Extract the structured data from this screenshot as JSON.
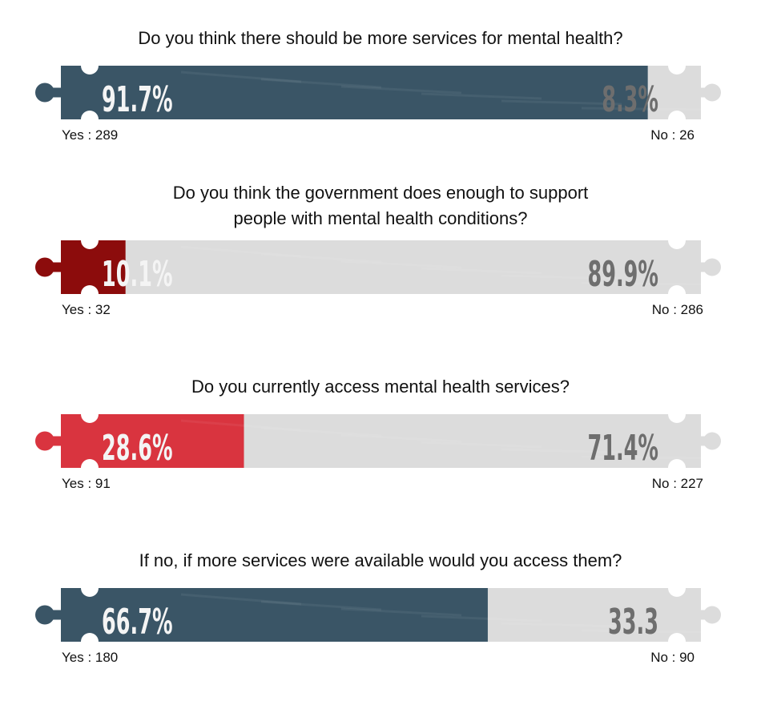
{
  "chart_data": [
    {
      "type": "bar",
      "orientation": "horizontal-stacked",
      "title": "Do you think there should be more services for mental health?",
      "title_lines": [
        "Do you think there should be more services for mental health?"
      ],
      "categories": [
        "Yes",
        "No"
      ],
      "values_percent": [
        91.7,
        8.3
      ],
      "percent_labels": [
        "91.7%",
        "8.3%"
      ],
      "counts": [
        289,
        26
      ],
      "count_labels": [
        "Yes : 289",
        "No : 26"
      ],
      "colors": {
        "yes": "#3a5566",
        "no": "#dcdcdc"
      }
    },
    {
      "type": "bar",
      "orientation": "horizontal-stacked",
      "title": "Do you think the government does enough to support people with mental health conditions?",
      "title_lines": [
        "Do you think the government does enough to support",
        "people with mental health conditions?"
      ],
      "categories": [
        "Yes",
        "No"
      ],
      "values_percent": [
        10.1,
        89.9
      ],
      "percent_labels": [
        "10.1%",
        "89.9%"
      ],
      "counts": [
        32,
        286
      ],
      "count_labels": [
        "Yes : 32",
        "No : 286"
      ],
      "colors": {
        "yes": "#8c0c0c",
        "no": "#dcdcdc"
      }
    },
    {
      "type": "bar",
      "orientation": "horizontal-stacked",
      "title": "Do you currently access mental health services?",
      "title_lines": [
        "Do you currently access mental health services?"
      ],
      "categories": [
        "Yes",
        "No"
      ],
      "values_percent": [
        28.6,
        71.4
      ],
      "percent_labels": [
        "28.6%",
        "71.4%"
      ],
      "counts": [
        91,
        227
      ],
      "count_labels": [
        "Yes : 91",
        "No : 227"
      ],
      "colors": {
        "yes": "#d9343f",
        "no": "#dcdcdc"
      }
    },
    {
      "type": "bar",
      "orientation": "horizontal-stacked",
      "title": "If no, if more services were available would you access them?",
      "title_lines": [
        "If no, if more services were available would you access them?"
      ],
      "categories": [
        "Yes",
        "No"
      ],
      "values_percent": [
        66.7,
        33.3
      ],
      "percent_labels": [
        "66.7%",
        "33.3"
      ],
      "counts": [
        180,
        90
      ],
      "count_labels": [
        "Yes : 180",
        "No : 90"
      ],
      "colors": {
        "yes": "#3a5566",
        "no": "#dcdcdc"
      }
    }
  ]
}
